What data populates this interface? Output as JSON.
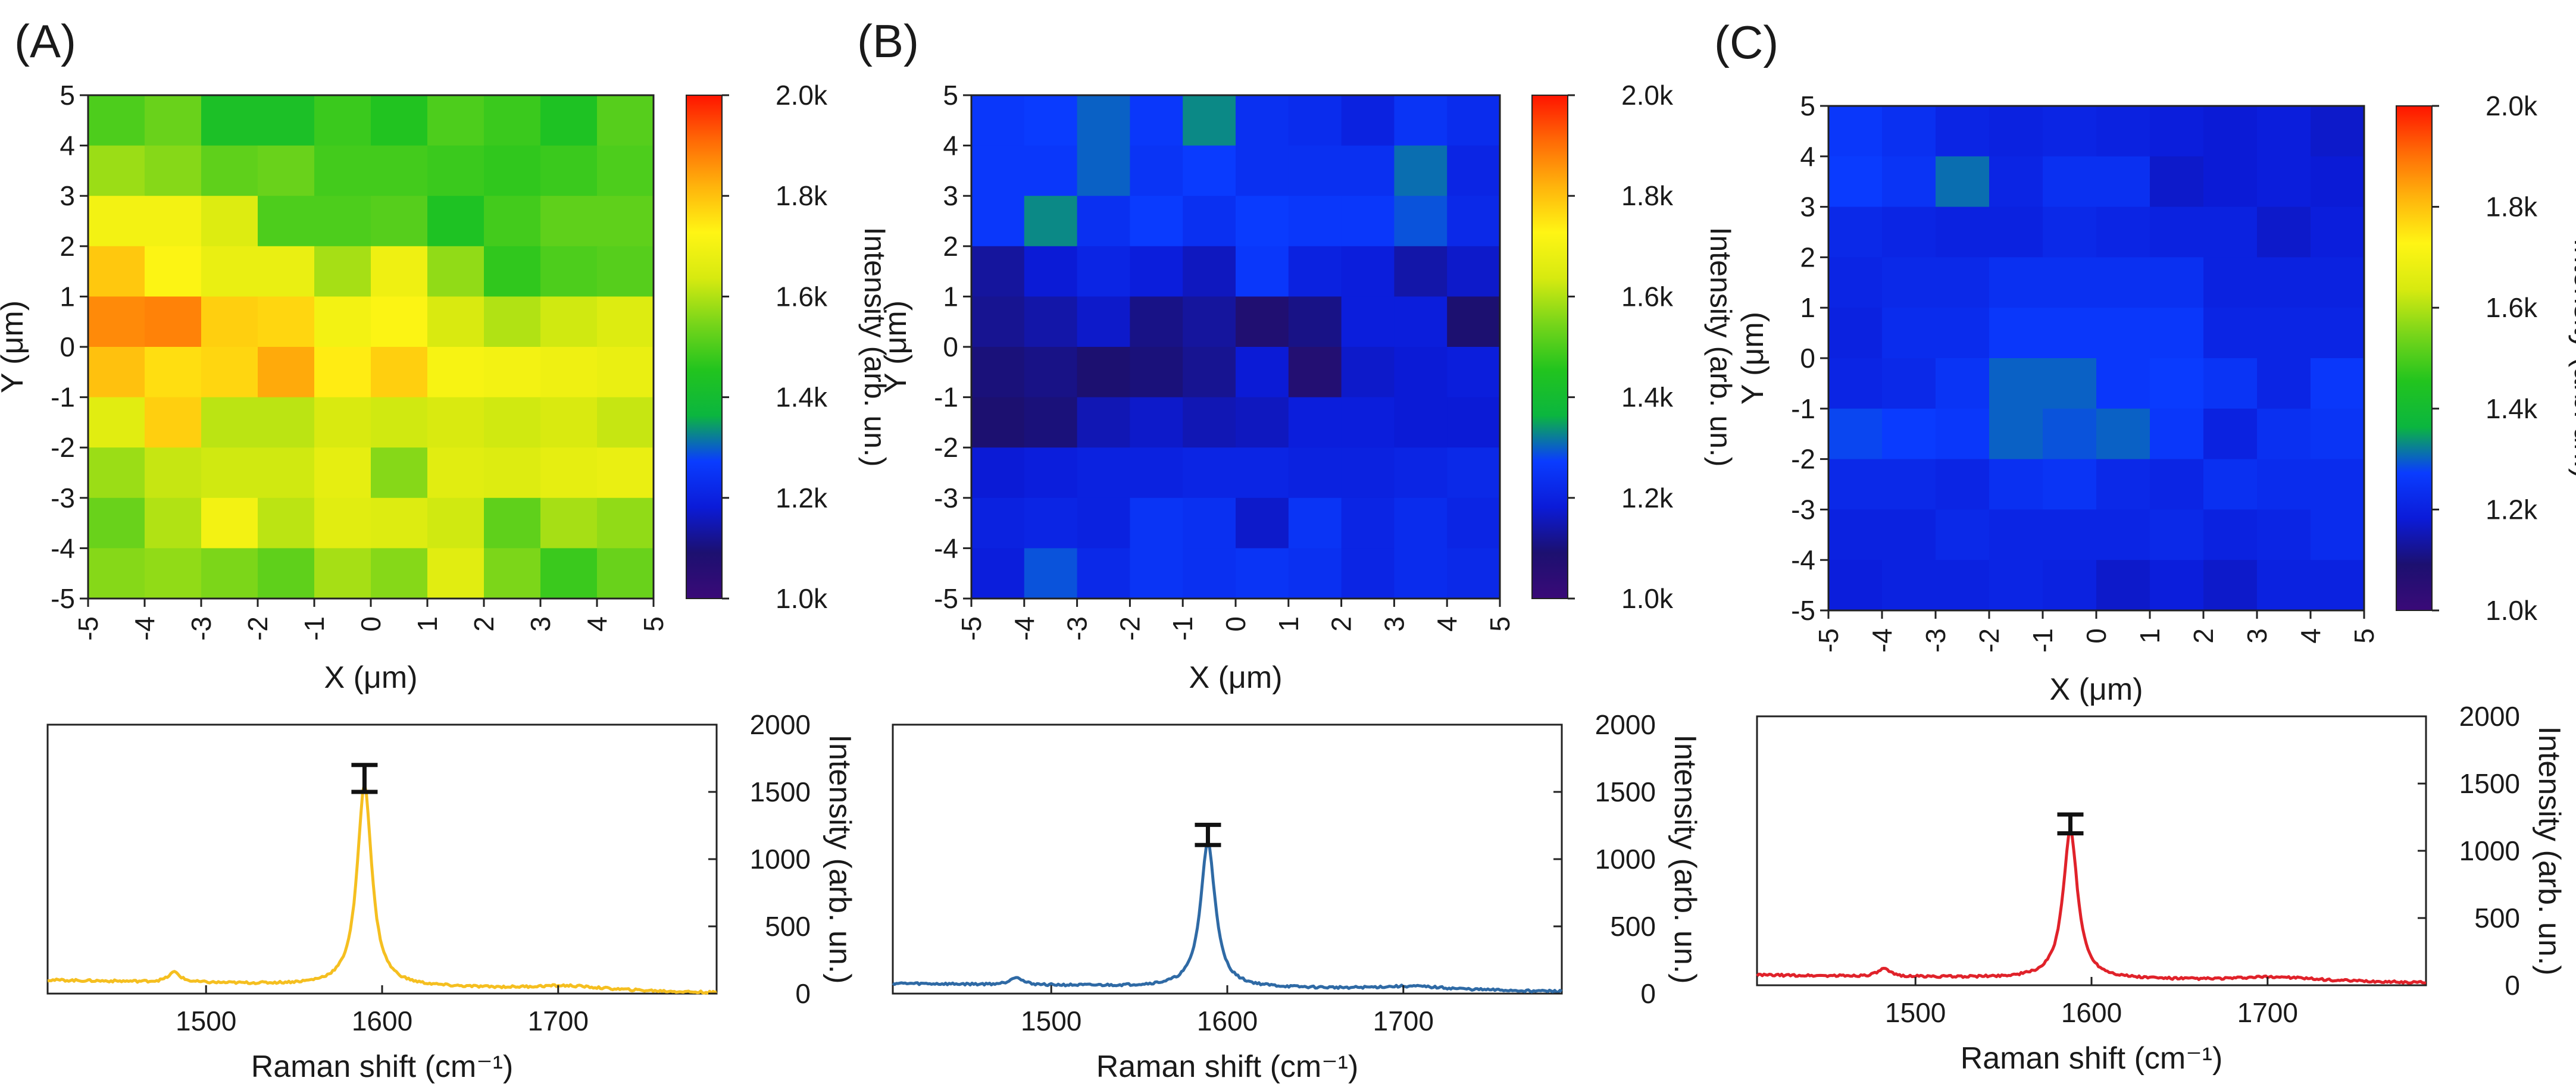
{
  "chart_data": [
    {
      "type": "heatmap",
      "panel": "(A)",
      "xlabel": "X (μm)",
      "ylabel": "Y (μm)",
      "x_ticks": [
        "-5",
        "-4",
        "-3",
        "-2",
        "-1",
        "0",
        "1",
        "2",
        "3",
        "4",
        "5"
      ],
      "y_ticks": [
        "5",
        "4",
        "3",
        "2",
        "1",
        "0",
        "-1",
        "-2",
        "-3",
        "-4",
        "-5"
      ],
      "xlim": [
        -5,
        5
      ],
      "ylim": [
        -5,
        5
      ],
      "colorbar": {
        "title": "Intensity (arb. un.)",
        "ticks": [
          "2.0k",
          "1.8k",
          "1.6k",
          "1.4k",
          "1.2k",
          "1.0k"
        ],
        "range": [
          1000,
          2000
        ],
        "colormap": [
          "#3a0a78",
          "#1c1070",
          "#0b1bd8",
          "#0a3cff",
          "#0bb63f",
          "#22c41e",
          "#77d51a",
          "#d7ea10",
          "#fff514",
          "#ffb40c",
          "#ff6a06",
          "#ff1400"
        ]
      },
      "grid": [
        [
          1500,
          1530,
          1430,
          1430,
          1480,
          1450,
          1500,
          1480,
          1440,
          1510
        ],
        [
          1580,
          1560,
          1520,
          1530,
          1490,
          1490,
          1480,
          1470,
          1480,
          1500
        ],
        [
          1700,
          1700,
          1650,
          1500,
          1500,
          1510,
          1440,
          1490,
          1520,
          1520
        ],
        [
          1790,
          1720,
          1680,
          1680,
          1590,
          1690,
          1570,
          1470,
          1500,
          1510
        ],
        [
          1870,
          1880,
          1780,
          1770,
          1700,
          1720,
          1640,
          1600,
          1630,
          1650
        ],
        [
          1800,
          1760,
          1770,
          1830,
          1740,
          1780,
          1710,
          1700,
          1690,
          1680
        ],
        [
          1660,
          1780,
          1610,
          1610,
          1640,
          1630,
          1640,
          1630,
          1640,
          1620
        ],
        [
          1580,
          1620,
          1630,
          1630,
          1670,
          1560,
          1660,
          1650,
          1670,
          1680
        ],
        [
          1530,
          1600,
          1700,
          1610,
          1660,
          1650,
          1630,
          1520,
          1590,
          1570
        ],
        [
          1560,
          1570,
          1550,
          1520,
          1590,
          1560,
          1660,
          1550,
          1480,
          1530
        ]
      ]
    },
    {
      "type": "heatmap",
      "panel": "(B)",
      "xlabel": "X (μm)",
      "ylabel": "Y (μm)",
      "x_ticks": [
        "-5",
        "-4",
        "-3",
        "-2",
        "-1",
        "0",
        "1",
        "2",
        "3",
        "4",
        "5"
      ],
      "y_ticks": [
        "5",
        "4",
        "3",
        "2",
        "1",
        "0",
        "-1",
        "-2",
        "-3",
        "-4",
        "-5"
      ],
      "xlim": [
        -5,
        5
      ],
      "ylim": [
        -5,
        5
      ],
      "colorbar": {
        "title": "Intensity (arb. un.)",
        "ticks": [
          "2.0k",
          "1.8k",
          "1.6k",
          "1.4k",
          "1.2k",
          "1.0k"
        ],
        "range": [
          1000,
          2000
        ]
      },
      "grid": [
        [
          1260,
          1270,
          1300,
          1260,
          1330,
          1240,
          1230,
          1200,
          1250,
          1230
        ],
        [
          1260,
          1260,
          1300,
          1250,
          1270,
          1240,
          1240,
          1240,
          1310,
          1210
        ],
        [
          1260,
          1330,
          1240,
          1270,
          1240,
          1270,
          1260,
          1260,
          1290,
          1220
        ],
        [
          1130,
          1180,
          1210,
          1190,
          1160,
          1260,
          1200,
          1190,
          1140,
          1170
        ],
        [
          1120,
          1140,
          1170,
          1110,
          1130,
          1080,
          1110,
          1190,
          1190,
          1090
        ],
        [
          1100,
          1110,
          1090,
          1100,
          1120,
          1180,
          1070,
          1170,
          1180,
          1190
        ],
        [
          1090,
          1100,
          1150,
          1170,
          1150,
          1160,
          1190,
          1190,
          1180,
          1180
        ],
        [
          1180,
          1190,
          1200,
          1200,
          1210,
          1210,
          1200,
          1200,
          1210,
          1220
        ],
        [
          1200,
          1210,
          1200,
          1250,
          1240,
          1170,
          1250,
          1210,
          1230,
          1210
        ],
        [
          1190,
          1290,
          1220,
          1250,
          1240,
          1250,
          1240,
          1210,
          1230,
          1220
        ]
      ]
    },
    {
      "type": "heatmap",
      "panel": "(C)",
      "xlabel": "X (μm)",
      "ylabel": "Y (μm)",
      "x_ticks": [
        "-5",
        "-4",
        "-3",
        "-2",
        "-1",
        "0",
        "1",
        "2",
        "3",
        "4",
        "5"
      ],
      "y_ticks": [
        "5",
        "4",
        "3",
        "2",
        "1",
        "0",
        "-1",
        "-2",
        "-3",
        "-4",
        "-5"
      ],
      "xlim": [
        -5,
        5
      ],
      "ylim": [
        -5,
        5
      ],
      "colorbar": {
        "title": "Intensity (arb. un.)",
        "ticks": [
          "2.0k",
          "1.8k",
          "1.6k",
          "1.4k",
          "1.2k",
          "1.0k"
        ],
        "range": [
          1000,
          2000
        ]
      },
      "grid": [
        [
          1260,
          1240,
          1210,
          1200,
          1210,
          1200,
          1190,
          1180,
          1190,
          1170
        ],
        [
          1270,
          1250,
          1310,
          1210,
          1240,
          1240,
          1170,
          1180,
          1190,
          1180
        ],
        [
          1220,
          1210,
          1200,
          1200,
          1220,
          1210,
          1200,
          1200,
          1170,
          1190
        ],
        [
          1210,
          1220,
          1220,
          1240,
          1240,
          1240,
          1240,
          1200,
          1200,
          1200
        ],
        [
          1200,
          1230,
          1230,
          1260,
          1260,
          1260,
          1260,
          1210,
          1210,
          1210
        ],
        [
          1210,
          1220,
          1250,
          1300,
          1300,
          1260,
          1270,
          1250,
          1210,
          1260
        ],
        [
          1280,
          1270,
          1260,
          1300,
          1290,
          1300,
          1260,
          1200,
          1240,
          1250
        ],
        [
          1220,
          1220,
          1210,
          1240,
          1250,
          1220,
          1210,
          1240,
          1230,
          1230
        ],
        [
          1200,
          1200,
          1220,
          1210,
          1210,
          1210,
          1220,
          1200,
          1210,
          1230
        ],
        [
          1190,
          1200,
          1200,
          1210,
          1200,
          1170,
          1190,
          1170,
          1200,
          1200
        ]
      ]
    },
    {
      "type": "line",
      "panel": "(A)",
      "color": "#f5bf20",
      "xlabel": "Raman shift (cm⁻¹)",
      "ylabel": "Intensity (arb. un.)",
      "xlim": [
        1410,
        1790
      ],
      "ylim": [
        0,
        2000
      ],
      "x_ticks": [
        "1500",
        "1600",
        "1700"
      ],
      "y_ticks": [
        "0",
        "500",
        "1000",
        "1500",
        "2000"
      ],
      "baseline": 100,
      "slope": -0.25,
      "peaks": [
        [
          1482,
          75,
          4
        ],
        [
          1590,
          1500,
          5
        ],
        [
          1705,
          30,
          25
        ]
      ],
      "errorbar": {
        "x": 1590,
        "y": 1600,
        "err": 100
      }
    },
    {
      "type": "line",
      "panel": "(B)",
      "color": "#2f6aa5",
      "xlabel": "Raman shift (cm⁻¹)",
      "ylabel": "Intensity (arb. un.)",
      "xlim": [
        1410,
        1790
      ],
      "ylim": [
        0,
        2000
      ],
      "x_ticks": [
        "1500",
        "1600",
        "1700"
      ],
      "y_ticks": [
        "0",
        "500",
        "1000",
        "1500",
        "2000"
      ],
      "baseline": 75,
      "slope": -0.16,
      "peaks": [
        [
          1480,
          60,
          4
        ],
        [
          1589,
          1080,
          5
        ],
        [
          1705,
          25,
          25
        ]
      ],
      "errorbar": {
        "x": 1589,
        "y": 1180,
        "err": 75
      }
    },
    {
      "type": "line",
      "panel": "(C)",
      "color": "#e0222a",
      "xlabel": "Raman shift (cm⁻¹)",
      "ylabel": "Intensity (arb. un.)",
      "xlim": [
        1410,
        1790
      ],
      "ylim": [
        0,
        2000
      ],
      "x_ticks": [
        "1500",
        "1600",
        "1700"
      ],
      "y_ticks": [
        "0",
        "500",
        "1000",
        "1500",
        "2000"
      ],
      "baseline": 75,
      "slope": -0.15,
      "peaks": [
        [
          1482,
          55,
          4
        ],
        [
          1588,
          1100,
          5
        ],
        [
          1705,
          30,
          25
        ]
      ],
      "errorbar": {
        "x": 1588,
        "y": 1200,
        "err": 70
      }
    }
  ]
}
